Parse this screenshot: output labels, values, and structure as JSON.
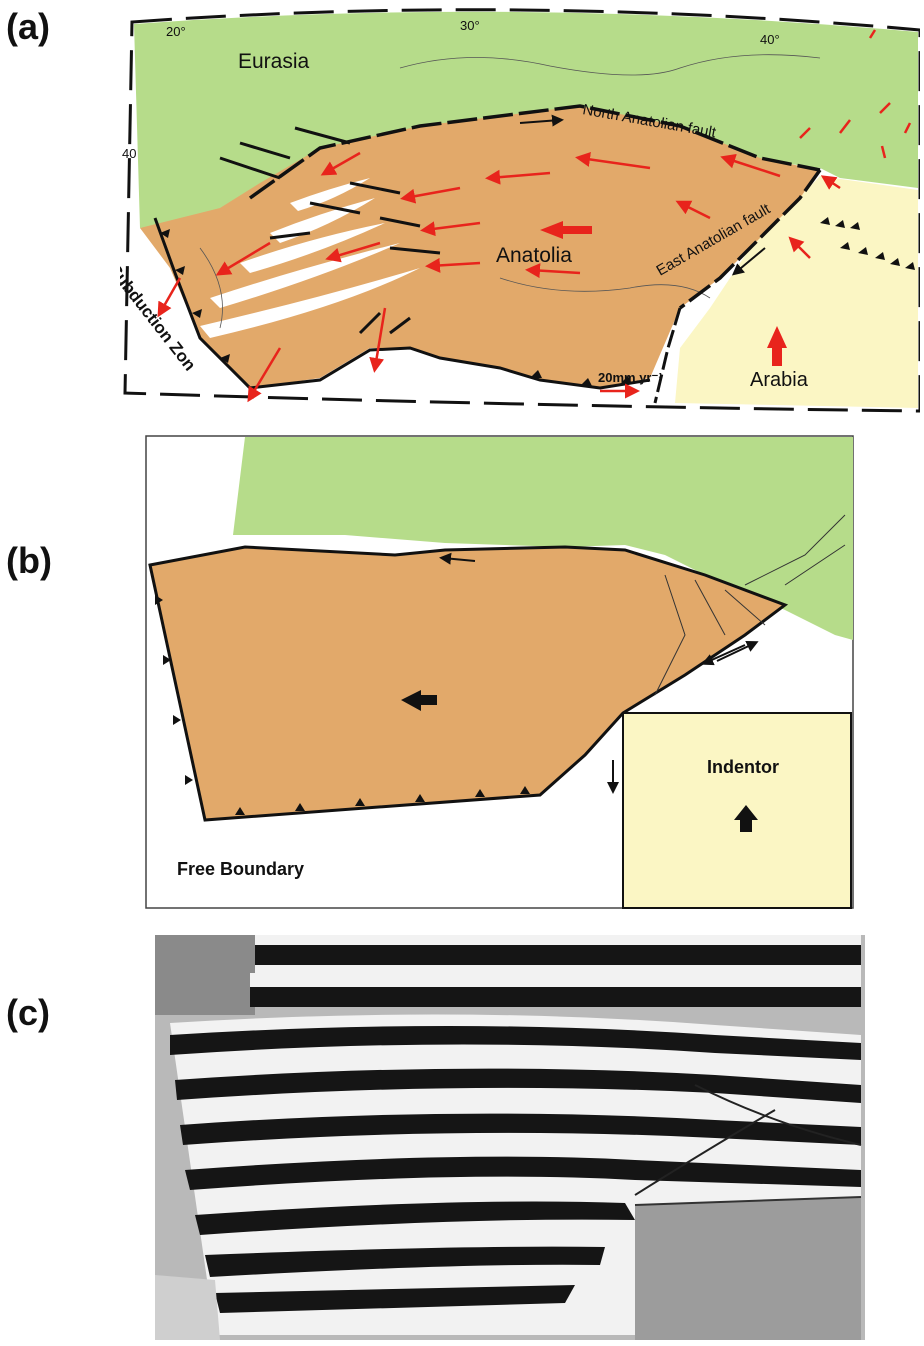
{
  "panels": {
    "a": {
      "letter": "(a)",
      "graticule": {
        "lon20": "20°",
        "lon30": "30°",
        "lon40": "40°",
        "lat40": "40"
      },
      "labels": {
        "eurasia": "Eurasia",
        "anatolia": "Anatolia",
        "arabia": "Arabia",
        "naf": "North Anatolian fault",
        "eaf": "East Anatolian fault",
        "subduction": "Subduction Zon",
        "scale": "20mm yr⁻¹"
      },
      "colors": {
        "eurasia": "#b6dc8a",
        "anatolia": "#e2a96a",
        "arabia": "#fbf6c4",
        "velocity": "#e8241c"
      }
    },
    "b": {
      "letter": "(b)",
      "labels": {
        "indentor": "Indentor",
        "free_boundary": "Free Boundary"
      },
      "colors": {
        "upper_block": "#b6dc8a",
        "escaping_block": "#e2a96a",
        "indentor": "#fbf6c4"
      }
    },
    "c": {
      "letter": "(c)"
    }
  }
}
